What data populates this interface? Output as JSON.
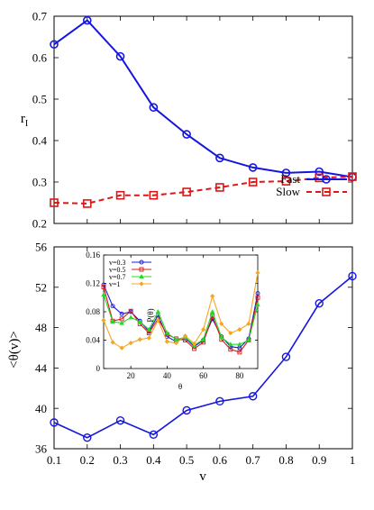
{
  "colors": {
    "fast": "#1515e0",
    "slow": "#e01515",
    "v03": "#1a1ad8",
    "v05": "#d81a1a",
    "v07": "#22dd22",
    "v1": "#f5a623",
    "axis": "#000000"
  },
  "chart_data": [
    {
      "type": "line",
      "ylabel": "r",
      "ylabel_sub": "I",
      "xlim": [
        0.1,
        1.0
      ],
      "ylim": [
        0.2,
        0.7
      ],
      "yticks": [
        "0.2",
        "0.3",
        "0.4",
        "0.5",
        "0.6",
        "0.7"
      ],
      "x": [
        0.1,
        0.2,
        0.3,
        0.4,
        0.5,
        0.6,
        0.7,
        0.8,
        0.9,
        1.0
      ],
      "legend_position": "bottom-right",
      "series": [
        {
          "name": "Fast",
          "marker": "circle",
          "style": "solid",
          "values": [
            0.632,
            0.69,
            0.603,
            0.48,
            0.415,
            0.358,
            0.335,
            0.322,
            0.325,
            0.312
          ]
        },
        {
          "name": "Slow",
          "marker": "square",
          "style": "dashed",
          "values": [
            0.25,
            0.248,
            0.268,
            0.268,
            0.276,
            0.287,
            0.3,
            0.302,
            0.31,
            0.313
          ]
        }
      ]
    },
    {
      "type": "line",
      "xlabel": "v",
      "ylabel": "<θ(v)>",
      "xlim": [
        0.1,
        1.0
      ],
      "ylim": [
        36,
        56
      ],
      "xticks": [
        "0.1",
        "0.2",
        "0.3",
        "0.4",
        "0.5",
        "0.6",
        "0.7",
        "0.8",
        "0.9",
        "1"
      ],
      "yticks": [
        "36",
        "40",
        "44",
        "48",
        "52",
        "56"
      ],
      "x": [
        0.1,
        0.2,
        0.3,
        0.4,
        0.5,
        0.6,
        0.7,
        0.8,
        0.9,
        1.0
      ],
      "series": [
        {
          "marker": "circle",
          "values": [
            38.6,
            37.1,
            38.8,
            37.4,
            39.8,
            40.7,
            41.2,
            45.1,
            50.4,
            53.1
          ]
        }
      ]
    },
    {
      "type": "line",
      "inset": true,
      "xlabel": "θ",
      "ylabel": "P(θ)",
      "xlim": [
        5,
        90
      ],
      "ylim": [
        0,
        0.16
      ],
      "xticks": [
        "20",
        "40",
        "60",
        "80"
      ],
      "yticks": [
        "0",
        "0.04",
        "0.08",
        "0.12",
        "0.16"
      ],
      "legend_position": "top-left",
      "x": [
        5,
        10,
        15,
        20,
        25,
        30,
        35,
        40,
        45,
        50,
        55,
        60,
        65,
        70,
        75,
        80,
        85,
        90
      ],
      "series": [
        {
          "name": "v=0.3",
          "marker": "circle",
          "values": [
            0.118,
            0.088,
            0.077,
            0.08,
            0.067,
            0.052,
            0.075,
            0.045,
            0.038,
            0.043,
            0.031,
            0.04,
            0.07,
            0.045,
            0.031,
            0.029,
            0.042,
            0.106
          ]
        },
        {
          "name": "v=0.5",
          "marker": "square",
          "values": [
            0.115,
            0.067,
            0.07,
            0.081,
            0.063,
            0.05,
            0.07,
            0.048,
            0.042,
            0.04,
            0.028,
            0.037,
            0.074,
            0.041,
            0.027,
            0.023,
            0.04,
            0.1
          ]
        },
        {
          "name": "v=0.7",
          "marker": "triangle",
          "values": [
            0.104,
            0.066,
            0.064,
            0.072,
            0.066,
            0.055,
            0.08,
            0.05,
            0.041,
            0.044,
            0.033,
            0.041,
            0.08,
            0.044,
            0.034,
            0.034,
            0.04,
            0.09
          ]
        },
        {
          "name": "v=1",
          "marker": "diamond",
          "values": [
            0.068,
            0.037,
            0.029,
            0.036,
            0.041,
            0.043,
            0.068,
            0.038,
            0.036,
            0.046,
            0.035,
            0.055,
            0.102,
            0.063,
            0.05,
            0.055,
            0.063,
            0.135
          ]
        }
      ]
    }
  ]
}
